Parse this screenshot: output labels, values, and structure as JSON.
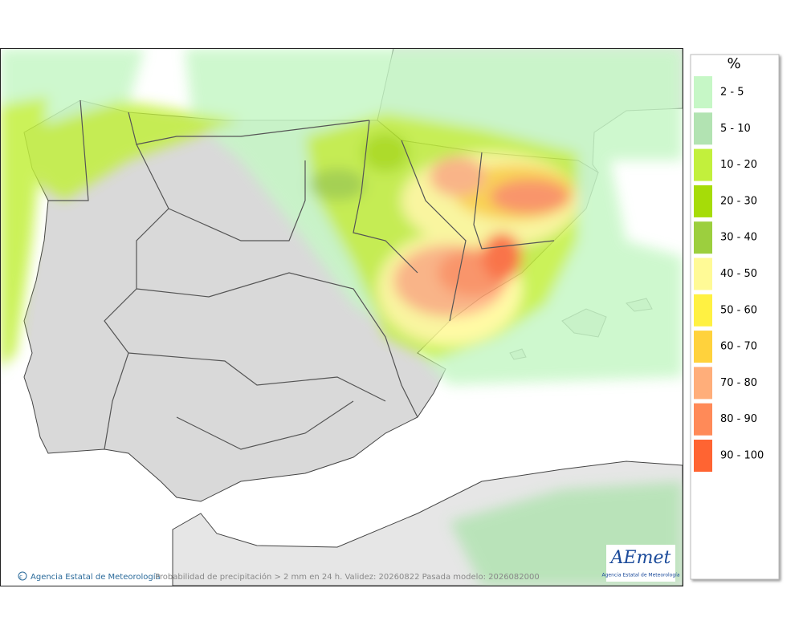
{
  "legend": {
    "title": "%",
    "items": [
      {
        "label": "2 - 5",
        "color": "#c6f7c6"
      },
      {
        "label": "5 - 10",
        "color": "#b2e3b2"
      },
      {
        "label": "10 - 20",
        "color": "#c2f03c"
      },
      {
        "label": "20 - 30",
        "color": "#a6dc08"
      },
      {
        "label": "30 - 40",
        "color": "#9ccf3e"
      },
      {
        "label": "40 - 50",
        "color": "#fffa96"
      },
      {
        "label": "50 - 60",
        "color": "#fff142"
      },
      {
        "label": "60 - 70",
        "color": "#ffd23c"
      },
      {
        "label": "70 - 80",
        "color": "#ffae7a"
      },
      {
        "label": "80 - 90",
        "color": "#ff8a58"
      },
      {
        "label": "90 - 100",
        "color": "#ff6432"
      }
    ]
  },
  "footer": {
    "credit": "Agencia Estatal de Meteorología",
    "caption": "Probabilidad de precipitación > 2 mm en 24 h. Validez: 20260822 Pasada modelo: 2026082000"
  },
  "logo": {
    "name": "AEmet",
    "subtitle": "Agencia Estatal de Meteorología"
  }
}
